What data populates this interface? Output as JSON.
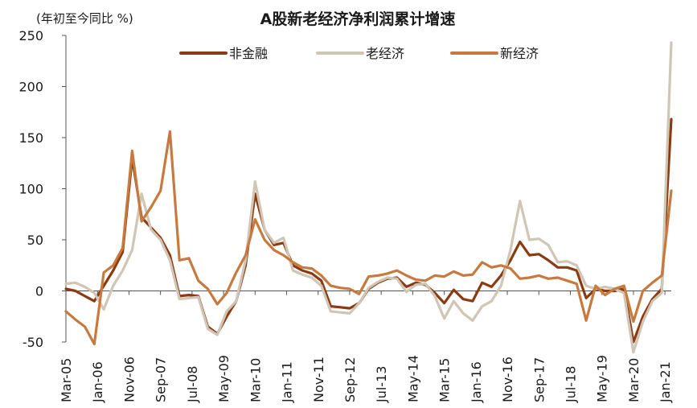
{
  "chart_data": {
    "type": "line",
    "title": "A股新老经济净利润累计增速",
    "unit_label": "(年初至今同比 %)",
    "xlabel": "",
    "ylabel": "",
    "ylim": [
      -50,
      250
    ],
    "yticks": [
      -50,
      0,
      50,
      100,
      150,
      200,
      250
    ],
    "grid": false,
    "legend": "top",
    "x_tick_labels": [
      "Mar-05",
      "Jan-06",
      "Nov-06",
      "Sep-07",
      "Jul-08",
      "May-09",
      "Mar-10",
      "Jan-11",
      "Nov-11",
      "Sep-12",
      "Jul-13",
      "May-14",
      "Mar-15",
      "Jan-16",
      "Nov-16",
      "Sep-17",
      "Jul-18",
      "May-19",
      "Mar-20",
      "Jan-21"
    ],
    "series": [
      {
        "name": "非金融",
        "color": "#8B3A12",
        "values": [
          [
            "2005-03",
            2
          ],
          [
            "2005-06",
            0
          ],
          [
            "2005-09",
            -5
          ],
          [
            "2005-12",
            -10
          ],
          [
            "2006-03",
            5
          ],
          [
            "2006-06",
            20
          ],
          [
            "2006-09",
            38
          ],
          [
            "2006-12",
            130
          ],
          [
            "2007-03",
            72
          ],
          [
            "2007-06",
            62
          ],
          [
            "2007-09",
            52
          ],
          [
            "2007-12",
            35
          ],
          [
            "2008-03",
            -5
          ],
          [
            "2008-06",
            -4
          ],
          [
            "2008-09",
            -5
          ],
          [
            "2008-12",
            -35
          ],
          [
            "2009-03",
            -42
          ],
          [
            "2009-06",
            -25
          ],
          [
            "2009-09",
            -10
          ],
          [
            "2009-12",
            25
          ],
          [
            "2010-03",
            95
          ],
          [
            "2010-06",
            60
          ],
          [
            "2010-09",
            45
          ],
          [
            "2010-12",
            47
          ],
          [
            "2011-03",
            25
          ],
          [
            "2011-06",
            20
          ],
          [
            "2011-09",
            17
          ],
          [
            "2011-12",
            10
          ],
          [
            "2012-03",
            -15
          ],
          [
            "2012-06",
            -16
          ],
          [
            "2012-09",
            -17
          ],
          [
            "2012-12",
            -12
          ],
          [
            "2013-03",
            2
          ],
          [
            "2013-06",
            8
          ],
          [
            "2013-09",
            12
          ],
          [
            "2013-12",
            13
          ],
          [
            "2014-03",
            4
          ],
          [
            "2014-06",
            8
          ],
          [
            "2014-09",
            6
          ],
          [
            "2014-12",
            -2
          ],
          [
            "2015-03",
            -12
          ],
          [
            "2015-06",
            1
          ],
          [
            "2015-09",
            -8
          ],
          [
            "2015-12",
            -10
          ],
          [
            "2016-03",
            8
          ],
          [
            "2016-06",
            4
          ],
          [
            "2016-09",
            15
          ],
          [
            "2016-12",
            30
          ],
          [
            "2017-03",
            48
          ],
          [
            "2017-06",
            35
          ],
          [
            "2017-09",
            36
          ],
          [
            "2017-12",
            30
          ],
          [
            "2018-03",
            23
          ],
          [
            "2018-06",
            23
          ],
          [
            "2018-09",
            20
          ],
          [
            "2018-12",
            -7
          ],
          [
            "2019-03",
            2
          ],
          [
            "2019-06",
            0
          ],
          [
            "2019-09",
            0
          ],
          [
            "2019-12",
            2
          ],
          [
            "2020-03",
            -50
          ],
          [
            "2020-06",
            -25
          ],
          [
            "2020-09",
            -8
          ],
          [
            "2020-12",
            2
          ],
          [
            "2021-03",
            168
          ]
        ]
      },
      {
        "name": "老经济",
        "color": "#CFC6B6",
        "values": [
          [
            "2005-03",
            7
          ],
          [
            "2005-06",
            8
          ],
          [
            "2005-09",
            4
          ],
          [
            "2005-12",
            -2
          ],
          [
            "2006-03",
            -18
          ],
          [
            "2006-06",
            5
          ],
          [
            "2006-09",
            20
          ],
          [
            "2006-12",
            40
          ],
          [
            "2007-03",
            95
          ],
          [
            "2007-06",
            60
          ],
          [
            "2007-09",
            50
          ],
          [
            "2007-12",
            30
          ],
          [
            "2008-03",
            -8
          ],
          [
            "2008-06",
            -7
          ],
          [
            "2008-09",
            -6
          ],
          [
            "2008-12",
            -37
          ],
          [
            "2009-03",
            -43
          ],
          [
            "2009-06",
            -20
          ],
          [
            "2009-09",
            -10
          ],
          [
            "2009-12",
            30
          ],
          [
            "2010-03",
            107
          ],
          [
            "2010-06",
            60
          ],
          [
            "2010-09",
            47
          ],
          [
            "2010-12",
            52
          ],
          [
            "2011-03",
            20
          ],
          [
            "2011-06",
            16
          ],
          [
            "2011-09",
            13
          ],
          [
            "2011-12",
            5
          ],
          [
            "2012-03",
            -20
          ],
          [
            "2012-06",
            -21
          ],
          [
            "2012-09",
            -22
          ],
          [
            "2012-12",
            -12
          ],
          [
            "2013-03",
            3
          ],
          [
            "2013-06",
            9
          ],
          [
            "2013-09",
            13
          ],
          [
            "2013-12",
            12
          ],
          [
            "2014-03",
            -1
          ],
          [
            "2014-06",
            6
          ],
          [
            "2014-09",
            7
          ],
          [
            "2014-12",
            -5
          ],
          [
            "2015-03",
            -27
          ],
          [
            "2015-06",
            -10
          ],
          [
            "2015-09",
            -22
          ],
          [
            "2015-12",
            -29
          ],
          [
            "2016-03",
            -15
          ],
          [
            "2016-06",
            -10
          ],
          [
            "2016-09",
            5
          ],
          [
            "2016-12",
            40
          ],
          [
            "2017-03",
            88
          ],
          [
            "2017-06",
            50
          ],
          [
            "2017-09",
            51
          ],
          [
            "2017-12",
            45
          ],
          [
            "2018-03",
            28
          ],
          [
            "2018-06",
            29
          ],
          [
            "2018-09",
            25
          ],
          [
            "2018-12",
            5
          ],
          [
            "2019-03",
            2
          ],
          [
            "2019-06",
            4
          ],
          [
            "2019-09",
            2
          ],
          [
            "2019-12",
            -2
          ],
          [
            "2020-03",
            -60
          ],
          [
            "2020-06",
            -30
          ],
          [
            "2020-09",
            -10
          ],
          [
            "2020-12",
            -2
          ],
          [
            "2021-03",
            243
          ]
        ]
      },
      {
        "name": "新经济",
        "color": "#C87A3E",
        "values": [
          [
            "2005-03",
            -20
          ],
          [
            "2005-06",
            -28
          ],
          [
            "2005-09",
            -35
          ],
          [
            "2005-12",
            -52
          ],
          [
            "2006-03",
            18
          ],
          [
            "2006-06",
            25
          ],
          [
            "2006-09",
            42
          ],
          [
            "2006-12",
            137
          ],
          [
            "2007-03",
            68
          ],
          [
            "2007-06",
            82
          ],
          [
            "2007-09",
            98
          ],
          [
            "2007-12",
            156
          ],
          [
            "2008-03",
            30
          ],
          [
            "2008-06",
            32
          ],
          [
            "2008-09",
            10
          ],
          [
            "2008-12",
            2
          ],
          [
            "2009-03",
            -13
          ],
          [
            "2009-06",
            -2
          ],
          [
            "2009-09",
            18
          ],
          [
            "2009-12",
            35
          ],
          [
            "2010-03",
            70
          ],
          [
            "2010-06",
            50
          ],
          [
            "2010-09",
            40
          ],
          [
            "2010-12",
            35
          ],
          [
            "2011-03",
            28
          ],
          [
            "2011-06",
            23
          ],
          [
            "2011-09",
            22
          ],
          [
            "2011-12",
            15
          ],
          [
            "2012-03",
            5
          ],
          [
            "2012-06",
            3
          ],
          [
            "2012-09",
            2
          ],
          [
            "2012-12",
            -3
          ],
          [
            "2013-03",
            14
          ],
          [
            "2013-06",
            15
          ],
          [
            "2013-09",
            17
          ],
          [
            "2013-12",
            20
          ],
          [
            "2014-03",
            15
          ],
          [
            "2014-06",
            11
          ],
          [
            "2014-09",
            10
          ],
          [
            "2014-12",
            15
          ],
          [
            "2015-03",
            14
          ],
          [
            "2015-06",
            19
          ],
          [
            "2015-09",
            15
          ],
          [
            "2015-12",
            16
          ],
          [
            "2016-03",
            28
          ],
          [
            "2016-06",
            23
          ],
          [
            "2016-09",
            25
          ],
          [
            "2016-12",
            22
          ],
          [
            "2017-03",
            12
          ],
          [
            "2017-06",
            13
          ],
          [
            "2017-09",
            15
          ],
          [
            "2017-12",
            12
          ],
          [
            "2018-03",
            13
          ],
          [
            "2018-06",
            10
          ],
          [
            "2018-09",
            7
          ],
          [
            "2018-12",
            -29
          ],
          [
            "2019-03",
            5
          ],
          [
            "2019-06",
            -4
          ],
          [
            "2019-09",
            2
          ],
          [
            "2019-12",
            5
          ],
          [
            "2020-03",
            -30
          ],
          [
            "2020-06",
            0
          ],
          [
            "2020-09",
            8
          ],
          [
            "2020-12",
            15
          ],
          [
            "2021-03",
            98
          ]
        ]
      }
    ]
  }
}
